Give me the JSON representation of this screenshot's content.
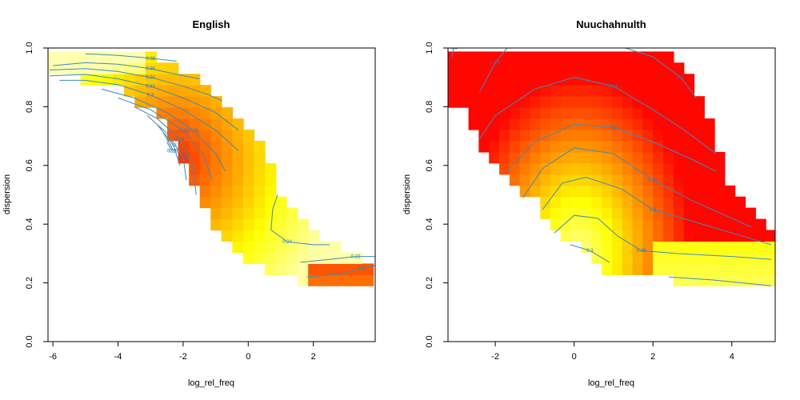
{
  "chart_data": [
    {
      "type": "heatmap",
      "title": "English",
      "xlabel": "log_rel_freq",
      "ylabel": "dispersion",
      "xlim": [
        -6.15,
        3.9
      ],
      "ylim": [
        0.0,
        1.0
      ],
      "xticks": [
        -6,
        -4,
        -2,
        0,
        2
      ],
      "yticks": [
        "0.0",
        "0.2",
        "0.4",
        "0.6",
        "0.8",
        "1.0"
      ],
      "colorscale": [
        "#ff0000",
        "#ff8000",
        "#ffff00",
        "#ffffb0"
      ],
      "contour_color": "#3a8cc0",
      "contour_labels": [
        "0.38",
        "0.36",
        "0.34",
        "0.32",
        "0.3",
        "0.28",
        "0.26",
        "0.24",
        "0.22",
        "0.2",
        "0.18",
        "0.16",
        "0.24",
        "0.22",
        "0.2"
      ],
      "contours": [
        [
          [
            -5.0,
            0.98
          ],
          [
            -4.0,
            0.975
          ],
          [
            -3.0,
            0.965
          ],
          [
            -2.2,
            0.955
          ]
        ],
        [
          [
            -6.0,
            0.94
          ],
          [
            -5.0,
            0.95
          ],
          [
            -4.0,
            0.945
          ],
          [
            -3.0,
            0.93
          ],
          [
            -2.2,
            0.91
          ],
          [
            -1.5,
            0.895
          ]
        ],
        [
          [
            -6.1,
            0.925
          ],
          [
            -5.0,
            0.93
          ],
          [
            -4.0,
            0.92
          ],
          [
            -3.0,
            0.9
          ],
          [
            -2.0,
            0.87
          ],
          [
            -1.2,
            0.84
          ],
          [
            -0.8,
            0.82
          ]
        ],
        [
          [
            -6.1,
            0.905
          ],
          [
            -5.0,
            0.91
          ],
          [
            -4.0,
            0.895
          ],
          [
            -3.0,
            0.87
          ],
          [
            -2.0,
            0.83
          ],
          [
            -1.0,
            0.78
          ],
          [
            -0.3,
            0.72
          ]
        ],
        [
          [
            -5.8,
            0.89
          ],
          [
            -5.0,
            0.89
          ],
          [
            -4.0,
            0.875
          ],
          [
            -3.0,
            0.84
          ],
          [
            -2.0,
            0.79
          ],
          [
            -1.0,
            0.72
          ],
          [
            -0.3,
            0.65
          ]
        ],
        [
          [
            -4.5,
            0.86
          ],
          [
            -3.5,
            0.83
          ],
          [
            -2.5,
            0.78
          ],
          [
            -1.7,
            0.72
          ],
          [
            -1.0,
            0.64
          ],
          [
            -0.7,
            0.58
          ]
        ],
        [
          [
            -4.0,
            0.83
          ],
          [
            -3.0,
            0.79
          ],
          [
            -2.0,
            0.72
          ],
          [
            -1.4,
            0.64
          ],
          [
            -1.1,
            0.55
          ]
        ],
        [
          [
            -3.5,
            0.8
          ],
          [
            -2.8,
            0.76
          ],
          [
            -2.1,
            0.69
          ],
          [
            -1.7,
            0.6
          ],
          [
            -1.6,
            0.5
          ]
        ],
        [
          [
            -3.1,
            0.77
          ],
          [
            -2.5,
            0.71
          ],
          [
            -2.0,
            0.63
          ],
          [
            -1.9,
            0.55
          ]
        ],
        [
          [
            -2.8,
            0.74
          ],
          [
            -2.3,
            0.67
          ],
          [
            -2.1,
            0.6
          ]
        ],
        [
          [
            -2.6,
            0.71
          ],
          [
            -2.3,
            0.65
          ]
        ],
        [
          [
            -2.5,
            0.68
          ],
          [
            -2.35,
            0.65
          ]
        ],
        [
          [
            0.9,
            0.5
          ],
          [
            0.75,
            0.45
          ],
          [
            0.7,
            0.38
          ],
          [
            1.2,
            0.34
          ],
          [
            2.0,
            0.33
          ],
          [
            2.5,
            0.33
          ]
        ],
        [
          [
            1.6,
            0.27
          ],
          [
            2.5,
            0.28
          ],
          [
            3.3,
            0.29
          ],
          [
            3.9,
            0.29
          ]
        ],
        [
          [
            1.8,
            0.22
          ],
          [
            2.8,
            0.23
          ],
          [
            3.5,
            0.25
          ],
          [
            3.9,
            0.26
          ]
        ]
      ]
    },
    {
      "type": "heatmap",
      "title": "Nuuchahnulth",
      "xlabel": "log_rel_freq",
      "ylabel": "dispersion",
      "xlim": [
        -3.2,
        5.1
      ],
      "ylim": [
        0.0,
        1.0
      ],
      "xticks": [
        -2,
        0,
        2,
        4
      ],
      "yticks": [
        "0.0",
        "0.2",
        "0.4",
        "0.6",
        "0.8",
        "1.0"
      ],
      "colorscale": [
        "#ff0000",
        "#ff8000",
        "#ffff00",
        "#ffffb0"
      ],
      "contour_color": "#3a8cc0",
      "contour_labels": [
        "0.4",
        "0.05",
        "0.1",
        "0.15",
        "0.2",
        "0.25",
        "0.3",
        "0.35",
        "0.3"
      ],
      "contours": [
        [
          [
            -3.1,
            0.97
          ],
          [
            -3.05,
            1.0
          ]
        ],
        [
          [
            -2.4,
            0.85
          ],
          [
            -2.0,
            0.95
          ],
          [
            -1.7,
            1.0
          ]
        ],
        [
          [
            1.3,
            1.0
          ],
          [
            2.0,
            0.97
          ],
          [
            2.7,
            0.9
          ],
          [
            3.1,
            0.83
          ]
        ],
        [
          [
            -2.4,
            0.69
          ],
          [
            -2.0,
            0.77
          ],
          [
            -1.0,
            0.86
          ],
          [
            0.0,
            0.9
          ],
          [
            1.0,
            0.87
          ],
          [
            2.0,
            0.79
          ],
          [
            2.8,
            0.72
          ],
          [
            3.6,
            0.64
          ]
        ],
        [
          [
            -1.7,
            0.58
          ],
          [
            -1.0,
            0.68
          ],
          [
            0.0,
            0.74
          ],
          [
            1.0,
            0.73
          ],
          [
            2.0,
            0.68
          ],
          [
            3.0,
            0.62
          ],
          [
            3.6,
            0.58
          ]
        ],
        [
          [
            -1.3,
            0.49
          ],
          [
            -0.8,
            0.59
          ],
          [
            0.0,
            0.66
          ],
          [
            1.0,
            0.64
          ],
          [
            2.0,
            0.55
          ],
          [
            3.0,
            0.48
          ],
          [
            4.0,
            0.42
          ],
          [
            4.5,
            0.39
          ]
        ],
        [
          [
            -0.8,
            0.45
          ],
          [
            -0.3,
            0.54
          ],
          [
            0.3,
            0.56
          ],
          [
            1.2,
            0.52
          ],
          [
            2.0,
            0.45
          ],
          [
            3.0,
            0.41
          ],
          [
            4.0,
            0.37
          ],
          [
            5.0,
            0.33
          ]
        ],
        [
          [
            -0.5,
            0.37
          ],
          [
            0.0,
            0.43
          ],
          [
            0.6,
            0.42
          ],
          [
            1.1,
            0.36
          ],
          [
            1.7,
            0.31
          ],
          [
            2.6,
            0.3
          ],
          [
            4.0,
            0.29
          ],
          [
            5.0,
            0.28
          ]
        ],
        [
          [
            -0.1,
            0.33
          ],
          [
            0.4,
            0.31
          ],
          [
            0.9,
            0.27
          ]
        ],
        [
          [
            2.4,
            0.22
          ],
          [
            3.5,
            0.21
          ],
          [
            5.0,
            0.19
          ]
        ]
      ]
    }
  ]
}
